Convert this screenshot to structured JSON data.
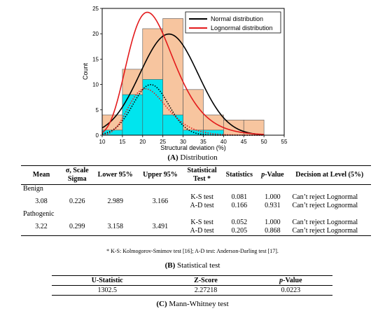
{
  "chart_data": {
    "type": "bar",
    "title": "",
    "xlabel": "Structural deviation (%)",
    "ylabel": "Count",
    "xlim": [
      10,
      55
    ],
    "ylim": [
      0,
      25
    ],
    "xticks": [
      10,
      15,
      20,
      25,
      30,
      35,
      40,
      45,
      50,
      55
    ],
    "yticks": [
      0,
      5,
      10,
      15,
      20,
      25
    ],
    "bin_edges": [
      10,
      15,
      20,
      25,
      30,
      35,
      40,
      45,
      50
    ],
    "series": [
      {
        "name": "",
        "color": "#f7c59f",
        "values": [
          4,
          13,
          21,
          23,
          9,
          4,
          3,
          3
        ]
      },
      {
        "name": "",
        "color": "#00e5ee",
        "values": [
          1,
          8,
          11,
          4,
          1,
          1,
          0,
          0
        ]
      }
    ],
    "curves": [
      {
        "name": "Normal distribution",
        "color": "#000000",
        "style": "solid",
        "mean": 26.5,
        "sd": 7.2,
        "scale": 360
      },
      {
        "name": "Lognormal distribution",
        "color": "#e31a1c",
        "style": "solid",
        "mu": 3.125,
        "sigma": 0.27,
        "scale": 360
      },
      {
        "name": "",
        "color": "#000000",
        "style": "dotted",
        "mean": 22.0,
        "sd": 4.4,
        "scale": 110
      },
      {
        "name": "",
        "color": "#e31a1c",
        "style": "dotted",
        "mu": 3.08,
        "sigma": 0.226,
        "scale": 110
      }
    ],
    "legend_position": "top-right"
  },
  "caption_a": {
    "tag": "(A)",
    "text": " Distribution"
  },
  "caption_b": {
    "tag": "(B)",
    "text": " Statistical test"
  },
  "caption_c": {
    "tag": "(C)",
    "text": " Mann-Whitney test"
  },
  "stats_table": {
    "headers": {
      "mean": "Mean",
      "sigma1": "σ, Scale",
      "sigma2": "Sigma",
      "lower": "Lower 95%",
      "upper": "Upper 95%",
      "test1": "Statistical",
      "test2": "Test *",
      "statistics": "Statistics",
      "p_italic": "p",
      "p_rest": "-Value",
      "decision": "Decision at Level (5%)"
    },
    "groups": [
      {
        "name": "Benign",
        "mean": "3.08",
        "sigma": "0.226",
        "lower": "2.989",
        "upper": "3.166",
        "rows": [
          {
            "test": "K-S test",
            "statistics": "0.081",
            "p": "1.000",
            "decision": "Can’t reject Lognormal"
          },
          {
            "test": "A-D test",
            "statistics": "0.166",
            "p": "0.931",
            "decision": "Can’t reject Lognormal"
          }
        ]
      },
      {
        "name": "Pathogenic",
        "mean": "3.22",
        "sigma": "0.299",
        "lower": "3.158",
        "upper": "3.491",
        "rows": [
          {
            "test": "K-S test",
            "statistics": "0.052",
            "p": "1.000",
            "decision": "Can’t reject Lognormal"
          },
          {
            "test": "A-D test",
            "statistics": "0.205",
            "p": "0.868",
            "decision": "Can’t reject Lognormal"
          }
        ]
      }
    ],
    "footnote": "* K-S: Kolmogorov-Smimov test [16]; A-D test: Anderson-Darling test [17]."
  },
  "mw_table": {
    "headers": {
      "u": "U-Statistic",
      "z": "Z-Score",
      "p_italic": "p",
      "p_rest": "-Value"
    },
    "row": {
      "u": "1302.5",
      "z": "2.27218",
      "p": "0.0223"
    }
  }
}
